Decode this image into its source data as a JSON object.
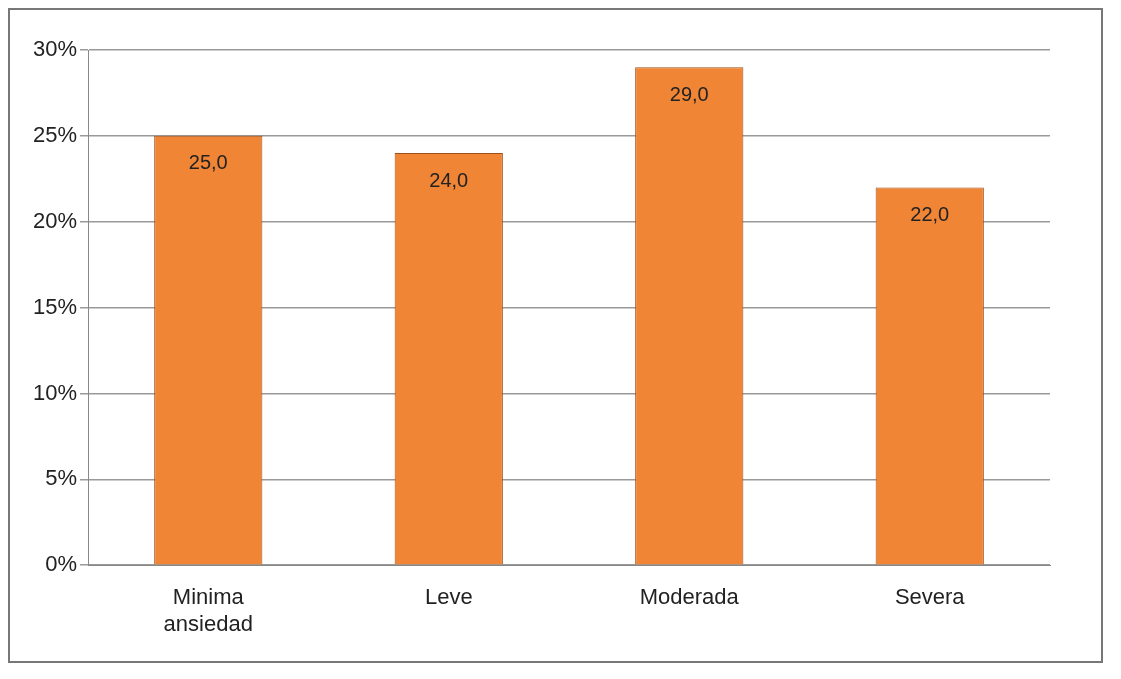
{
  "chart_data": {
    "type": "bar",
    "categories": [
      "Minima ansiedad",
      "Leve",
      "Moderada",
      "Severa"
    ],
    "values": [
      25,
      24,
      29,
      22
    ],
    "value_labels": [
      "25,0",
      "24,0",
      "29,0",
      "22,0"
    ],
    "color": "#f08536",
    "ylim": [
      0,
      30
    ],
    "yticks": [
      {
        "value": 0,
        "label": "0%"
      },
      {
        "value": 5,
        "label": "5%"
      },
      {
        "value": 10,
        "label": "10%"
      },
      {
        "value": 15,
        "label": "15%"
      },
      {
        "value": 20,
        "label": "20%"
      },
      {
        "value": 25,
        "label": "25%"
      },
      {
        "value": 30,
        "label": "30%"
      }
    ],
    "grid": "y",
    "legend": false
  }
}
